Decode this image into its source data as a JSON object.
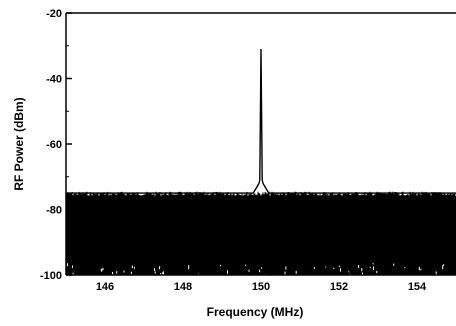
{
  "chart_data": {
    "type": "line",
    "xlabel": "Frequency (MHz)",
    "ylabel": "RF Power (dBm)",
    "xlim": [
      145,
      155
    ],
    "ylim": [
      -100,
      -20
    ],
    "x_ticks": [
      146,
      148,
      150,
      152,
      154
    ],
    "x_tick_labels": [
      "146",
      "148",
      "150",
      "152",
      "154"
    ],
    "y_ticks": [
      -100,
      -80,
      -60,
      -40,
      -20
    ],
    "y_tick_labels": [
      "-100",
      "-80",
      "-60",
      "-40",
      "-20"
    ],
    "grid": false,
    "series": [
      {
        "color": "#000000",
        "noise_floor_band_dbm": [
          -100,
          -75
        ],
        "x": [
          145.0,
          149.8,
          149.9,
          149.95,
          149.97,
          150.0,
          150.03,
          150.05,
          150.1,
          150.2,
          155.0
        ],
        "y": [
          -75,
          -75,
          -73,
          -72,
          -71,
          -31,
          -71,
          -72,
          -73,
          -75,
          -75
        ]
      }
    ]
  }
}
